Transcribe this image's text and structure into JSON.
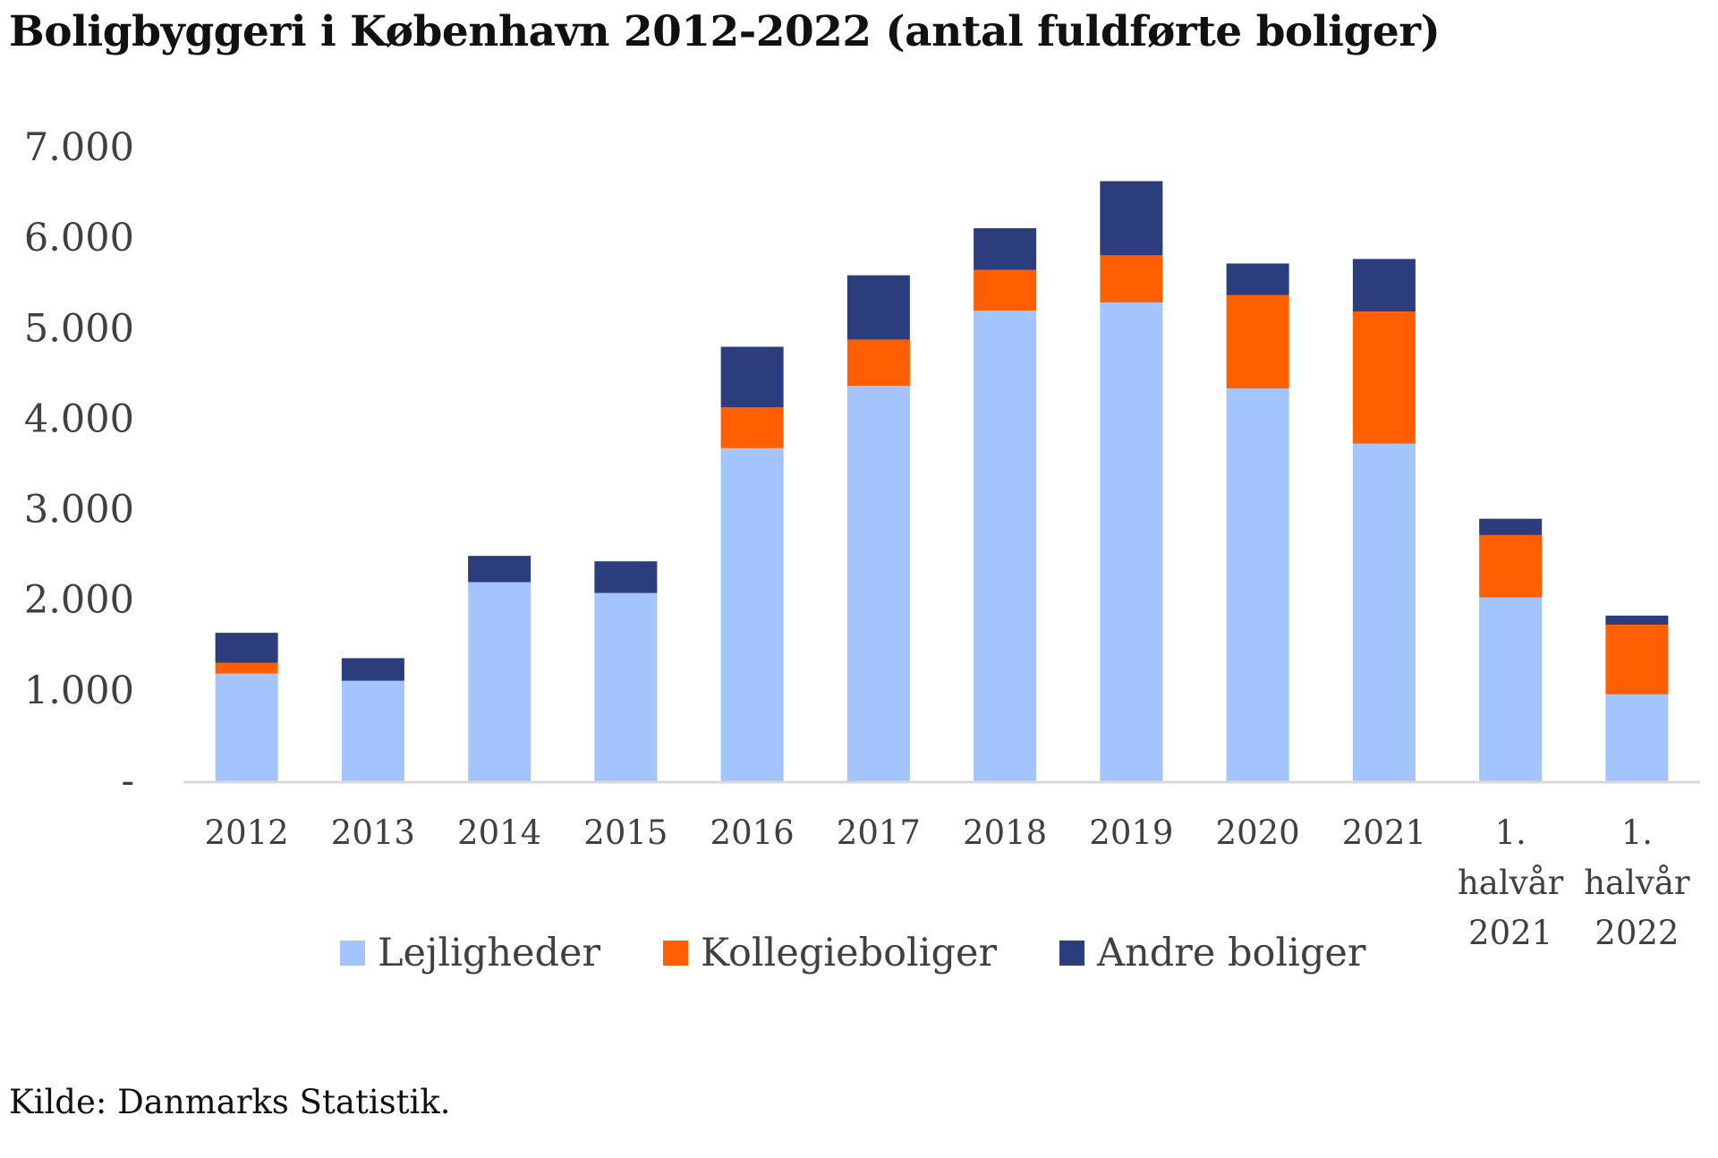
{
  "title": "Boligbyggeri i København 2012-2022 (antal fuldførte boliger)",
  "source": "Kilde: Danmarks Statistik.",
  "chart_data": {
    "type": "bar",
    "stacked": true,
    "title": "Boligbyggeri i København 2012-2022 (antal fuldførte boliger)",
    "categories": [
      [
        "2012"
      ],
      [
        "2013"
      ],
      [
        "2014"
      ],
      [
        "2015"
      ],
      [
        "2016"
      ],
      [
        "2017"
      ],
      [
        "2018"
      ],
      [
        "2019"
      ],
      [
        "2020"
      ],
      [
        "2021"
      ],
      [
        "1.",
        "halvår",
        "2021"
      ],
      [
        "1.",
        "halvår",
        "2022"
      ]
    ],
    "series": [
      {
        "name": "Lejligheder",
        "color": "#a3c4fc",
        "values": [
          1190,
          1110,
          2200,
          2080,
          3680,
          4370,
          5200,
          5290,
          4340,
          3730,
          2030,
          960
        ]
      },
      {
        "name": "Kollegieboliger",
        "color": "#ff5f00",
        "values": [
          120,
          0,
          0,
          0,
          450,
          510,
          450,
          520,
          1030,
          1460,
          690,
          770
        ]
      },
      {
        "name": "Andre boliger",
        "color": "#2b3d7d",
        "values": [
          330,
          250,
          290,
          350,
          670,
          710,
          460,
          820,
          350,
          580,
          180,
          100
        ]
      }
    ],
    "ylim": [
      0,
      7000
    ],
    "yticks": [
      {
        "value": 0,
        "label": "-"
      },
      {
        "value": 1000,
        "label": "1.000"
      },
      {
        "value": 2000,
        "label": "2.000"
      },
      {
        "value": 3000,
        "label": "3.000"
      },
      {
        "value": 4000,
        "label": "4.000"
      },
      {
        "value": 5000,
        "label": "5.000"
      },
      {
        "value": 6000,
        "label": "6.000"
      },
      {
        "value": 7000,
        "label": "7.000"
      }
    ],
    "grid": false,
    "legend": "bottom"
  }
}
